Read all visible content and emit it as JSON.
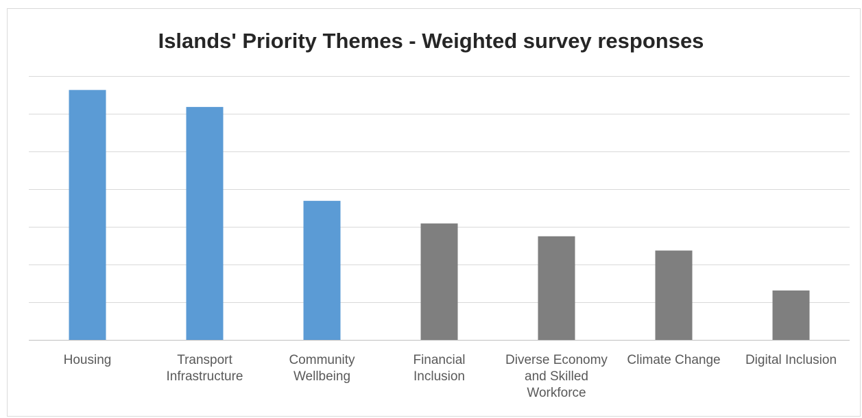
{
  "chart_data": {
    "type": "bar",
    "title": "Islands' Priority Themes - Weighted survey responses",
    "xlabel": "",
    "ylabel": "",
    "categories": [
      "Housing",
      "Transport Infrastructure",
      "Community Wellbeing",
      "Financial Inclusion",
      "Diverse Economy and Skilled Workforce",
      "Climate Change",
      "Digital Inclusion"
    ],
    "category_lines": [
      [
        "Housing"
      ],
      [
        "Transport",
        "Infrastructure"
      ],
      [
        "Community",
        "Wellbeing"
      ],
      [
        "Financial",
        "Inclusion"
      ],
      [
        "Diverse Economy",
        "and Skilled",
        "Workforce"
      ],
      [
        "Climate Change"
      ],
      [
        "Digital Inclusion"
      ]
    ],
    "values": [
      6.63,
      6.18,
      3.69,
      3.09,
      2.75,
      2.37,
      1.31
    ],
    "ylim": [
      0,
      7
    ],
    "y_grid_step": 1,
    "grid": true,
    "y_axis_labels_shown": false,
    "colors": [
      "#5b9bd5",
      "#5b9bd5",
      "#5b9bd5",
      "#7f7f7f",
      "#7f7f7f",
      "#7f7f7f",
      "#7f7f7f"
    ]
  }
}
